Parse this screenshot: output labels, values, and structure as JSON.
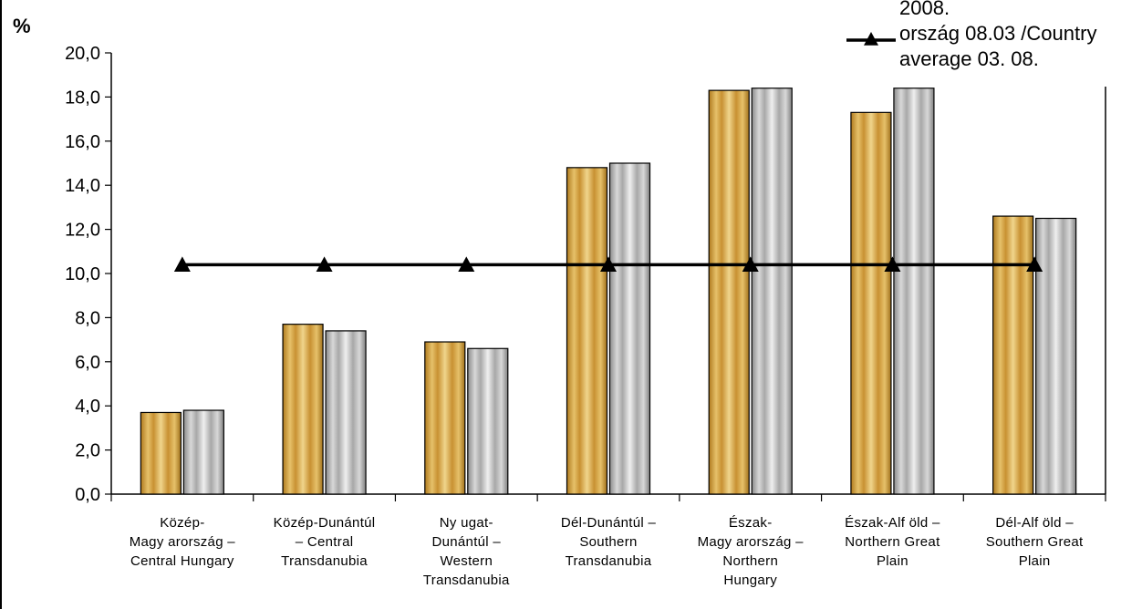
{
  "chart_data": {
    "type": "bar",
    "unit_label": "%",
    "categories": [
      [
        "Közép-",
        "Magy arország –",
        "Central Hungary"
      ],
      [
        "Közép-Dunántúl",
        "– Central",
        "Transdanubia"
      ],
      [
        "Ny ugat-",
        "Dunántúl –",
        "Western",
        "Transdanubia"
      ],
      [
        "Dél-Dunántúl –",
        "Southern",
        "Transdanubia"
      ],
      [
        "Észak-",
        "Magy arország –",
        "Northern",
        "Hungary"
      ],
      [
        "Észak-Alf öld –",
        "Northern Great",
        "Plain"
      ],
      [
        "Dél-Alf öld –",
        "Southern Great",
        "Plain"
      ]
    ],
    "series": [
      {
        "values": [
          3.7,
          7.7,
          6.9,
          14.8,
          18.3,
          17.3,
          12.6
        ],
        "color": "#d9a441"
      },
      {
        "values": [
          3.8,
          7.4,
          6.6,
          15.0,
          18.4,
          18.4,
          12.5
        ],
        "color": "#b5b5b5"
      }
    ],
    "line_series": {
      "name_lines": [
        "2008.",
        "ország 08.03 /Country",
        "average 03. 08."
      ],
      "values": [
        10.4,
        10.4,
        10.4,
        10.4,
        10.4,
        10.4,
        10.4
      ],
      "color": "#000000",
      "marker": "triangle"
    },
    "ylim": [
      0,
      20
    ],
    "yticks": [
      "0,0",
      "2,0",
      "4,0",
      "6,0",
      "8,0",
      "10,0",
      "12,0",
      "14,0",
      "16,0",
      "18,0",
      "20,0"
    ],
    "grid": false,
    "legend_position": "top-right"
  }
}
